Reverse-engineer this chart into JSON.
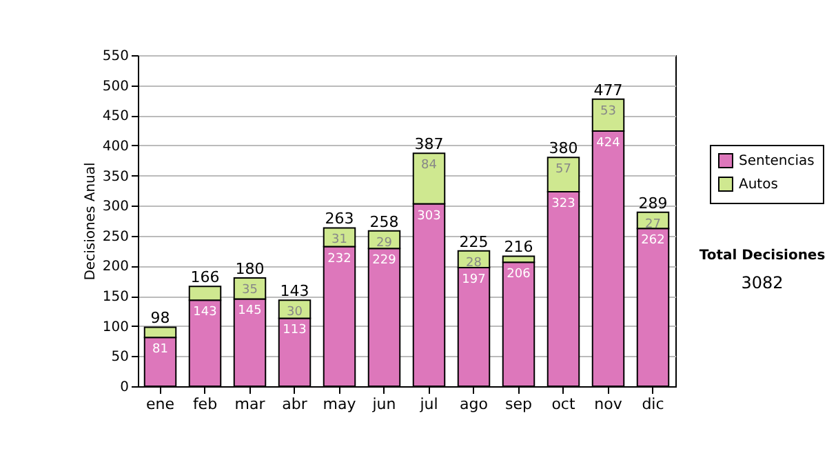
{
  "chart_data": {
    "type": "bar",
    "stacked": true,
    "ylabel": "Decisiones Anual",
    "categories": [
      "ene",
      "feb",
      "mar",
      "abr",
      "may",
      "jun",
      "jul",
      "ago",
      "sep",
      "oct",
      "nov",
      "dic"
    ],
    "series": [
      {
        "name": "Sentencias",
        "color": "#dd77bb",
        "values": [
          81,
          143,
          145,
          113,
          232,
          229,
          303,
          197,
          206,
          323,
          424,
          262
        ],
        "value_labels": [
          "81",
          "143",
          "145",
          "113",
          "232",
          "229",
          "303",
          "197",
          "206",
          "323",
          "424",
          "262"
        ]
      },
      {
        "name": "Autos",
        "color": "#cfe890",
        "values": [
          17,
          23,
          35,
          30,
          31,
          29,
          84,
          28,
          10,
          57,
          53,
          27
        ],
        "value_labels": [
          null,
          null,
          "35",
          "30",
          "31",
          "29",
          "84",
          "28",
          null,
          "57",
          "53",
          "27"
        ]
      }
    ],
    "totals": [
      "98",
      "166",
      "180",
      "143",
      "263",
      "258",
      "387",
      "225",
      "216",
      "380",
      "477",
      "289"
    ],
    "ylim": [
      0,
      550
    ],
    "yticks": [
      0,
      50,
      100,
      150,
      200,
      250,
      300,
      350,
      400,
      450,
      500,
      550
    ],
    "grid": "y",
    "legend": "right",
    "annotations": [
      "Total Decisiones",
      "3082"
    ]
  }
}
